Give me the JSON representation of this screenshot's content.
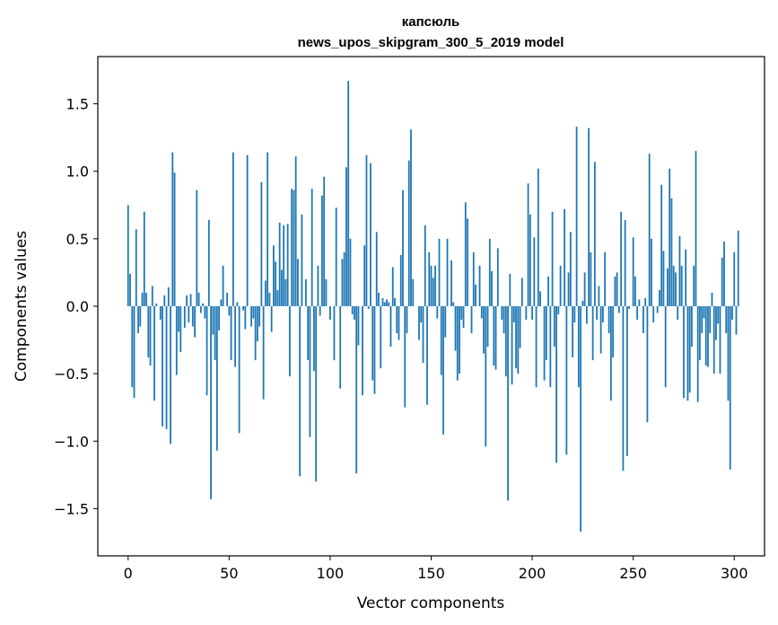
{
  "chart_data": {
    "type": "bar",
    "title_line1": "капсюль",
    "title_line2": "news_upos_skipgram_300_5_2019 model",
    "xlabel": "Vector components",
    "ylabel": "Components values",
    "xlim": [
      -15,
      315
    ],
    "ylim": [
      -1.85,
      1.85
    ],
    "xticks": [
      0,
      50,
      100,
      150,
      200,
      250,
      300
    ],
    "yticks": [
      -1.5,
      -1.0,
      -0.5,
      0.0,
      0.5,
      1.0,
      1.5
    ],
    "ytick_labels": [
      "−1.5",
      "−1.0",
      "−0.5",
      "0.0",
      "0.5",
      "1.0",
      "1.5"
    ],
    "bar_color": "#1f77b4",
    "grid": false,
    "legend": "none",
    "values": [
      0.75,
      0.24,
      -0.6,
      -0.68,
      0.57,
      -0.2,
      -0.15,
      0.1,
      0.7,
      0.1,
      -0.38,
      -0.44,
      0.15,
      -0.7,
      0.02,
      0.0,
      -0.1,
      -0.89,
      0.08,
      -0.91,
      0.14,
      -1.02,
      1.14,
      0.99,
      -0.51,
      -0.19,
      -0.34,
      0.0,
      -0.16,
      0.08,
      -0.12,
      0.09,
      -0.15,
      -0.23,
      0.86,
      0.1,
      -0.05,
      0.02,
      -0.09,
      -0.66,
      0.64,
      -1.43,
      -0.21,
      -0.4,
      -1.07,
      -0.18,
      0.05,
      0.3,
      0.0,
      0.1,
      -0.07,
      -0.4,
      1.14,
      -0.45,
      0.03,
      -0.94,
      0.0,
      -0.03,
      -0.17,
      1.12,
      0.0,
      -0.15,
      -0.09,
      -0.4,
      -0.26,
      -0.15,
      0.92,
      -0.69,
      0.19,
      1.14,
      0.1,
      -0.19,
      0.45,
      0.33,
      0.12,
      0.62,
      0.27,
      0.6,
      0.2,
      0.61,
      -0.52,
      0.87,
      0.86,
      1.11,
      0.35,
      -1.26,
      0.68,
      0.0,
      0.2,
      -0.4,
      -0.97,
      0.87,
      -0.48,
      -1.3,
      0.3,
      -0.07,
      0.82,
      0.96,
      0.2,
      0.0,
      -0.1,
      0.0,
      -0.4,
      0.73,
      0.0,
      -0.61,
      0.35,
      0.4,
      1.03,
      1.67,
      0.5,
      -0.06,
      -0.1,
      -1.24,
      -0.29,
      0.0,
      -0.66,
      0.45,
      1.12,
      -0.02,
      1.06,
      -0.55,
      -0.65,
      0.55,
      0.1,
      -0.46,
      0.06,
      0.03,
      0.05,
      0.03,
      -0.3,
      0.29,
      0.06,
      -0.2,
      -0.25,
      0.38,
      0.86,
      -0.75,
      -0.2,
      1.08,
      1.31,
      0.2,
      0.0,
      0.0,
      -0.25,
      -0.12,
      -0.42,
      0.6,
      -0.73,
      0.4,
      0.3,
      0.21,
      0.3,
      -0.09,
      0.5,
      -0.51,
      -0.95,
      -0.23,
      0.5,
      0.0,
      0.34,
      0.03,
      -0.33,
      -0.55,
      -0.5,
      -0.1,
      -0.16,
      0.77,
      0.65,
      0.0,
      -0.2,
      0.4,
      0.16,
      0.0,
      0.3,
      -0.09,
      -0.35,
      -1.04,
      -0.3,
      0.5,
      0.26,
      -0.44,
      -0.47,
      0.43,
      0.0,
      -0.1,
      -0.2,
      -0.52,
      -1.44,
      0.24,
      -0.58,
      -0.12,
      -0.46,
      -0.5,
      -0.31,
      0.21,
      0.0,
      -0.1,
      0.91,
      0.68,
      -0.1,
      0.51,
      -0.6,
      1.02,
      0.11,
      0.0,
      -0.55,
      -0.4,
      0.22,
      -0.6,
      0.7,
      -0.3,
      -1.16,
      -0.06,
      0.3,
      0.0,
      0.72,
      -1.1,
      0.25,
      0.55,
      -0.38,
      -0.12,
      1.33,
      -0.6,
      -1.67,
      0.04,
      0.25,
      -0.13,
      1.32,
      0.4,
      -0.4,
      1.07,
      -0.1,
      0.15,
      -0.35,
      -0.12,
      0.4,
      0.0,
      -0.2,
      -0.7,
      -0.38,
      0.22,
      0.25,
      -0.05,
      0.7,
      -1.22,
      0.64,
      -1.11,
      -0.02,
      0.0,
      0.51,
      0.22,
      -0.1,
      0.05,
      0.0,
      -0.2,
      0.06,
      -0.86,
      1.13,
      0.5,
      -0.12,
      0.0,
      -0.05,
      0.12,
      0.9,
      0.41,
      -0.6,
      0.28,
      1.02,
      0.8,
      0.3,
      0.25,
      -0.1,
      0.52,
      0.3,
      -0.68,
      0.42,
      -0.7,
      -0.64,
      -0.3,
      0.3,
      1.15,
      -0.71,
      -0.4,
      -0.2,
      -0.09,
      -0.44,
      -0.45,
      -0.2,
      0.1,
      -0.5,
      -0.25,
      -0.13,
      -0.5,
      0.36,
      0.48,
      -0.2,
      -0.7,
      -1.21,
      -0.1,
      0.4,
      -0.21,
      0.56
    ]
  }
}
